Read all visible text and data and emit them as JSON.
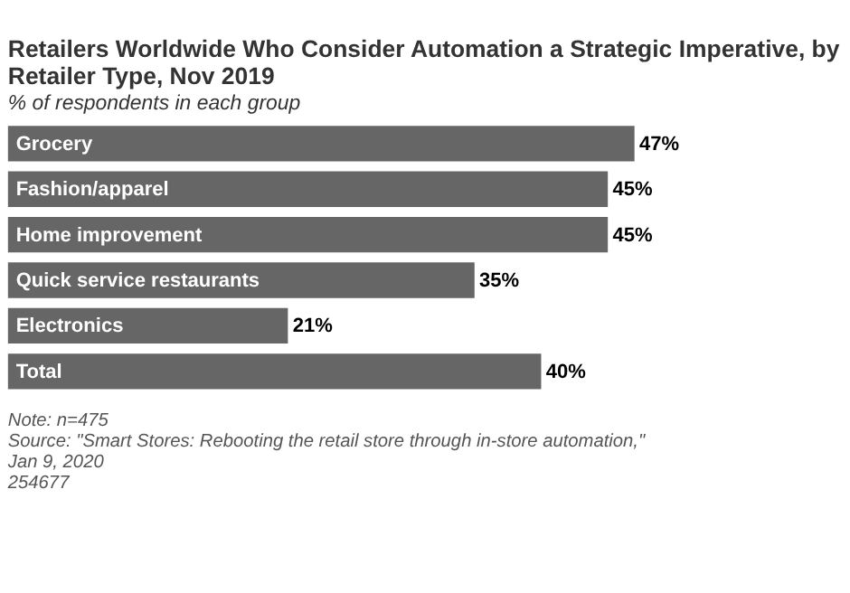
{
  "chart_data": {
    "type": "bar",
    "orientation": "horizontal",
    "title": "Retailers Worldwide Who Consider Automation a Strategic Imperative, by Retailer Type, Nov 2019",
    "subtitle": "% of respondents in each group",
    "categories": [
      "Grocery",
      "Fashion/apparel",
      "Home improvement",
      "Quick service restaurants",
      "Electronics",
      "Total"
    ],
    "values": [
      47,
      45,
      45,
      35,
      21,
      40
    ],
    "value_labels": [
      "47%",
      "45%",
      "45%",
      "35%",
      "21%",
      "40%"
    ],
    "color": "#666666",
    "annotations": [
      "Note: n=475",
      "Source: \"Smart Stores: Rebooting the retail store through in-store automation,\" Jan 9, 2020",
      "254677"
    ]
  }
}
